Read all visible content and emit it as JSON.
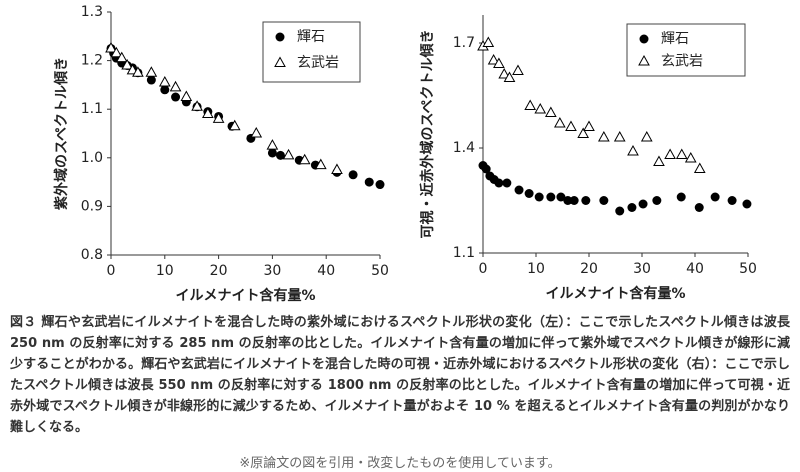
{
  "chart_data": [
    {
      "type": "scatter",
      "x_label": "イルメナイト含有量%",
      "y_label": "紫外域のスペクトル傾き",
      "xlim": [
        0,
        50
      ],
      "xticks": [
        0,
        10,
        20,
        30,
        40,
        50
      ],
      "ylim": [
        0.8,
        1.3
      ],
      "yticks": [
        0.8,
        0.9,
        {
          "value": 1,
          "label": "1.0"
        },
        1.1,
        1.2,
        1.3
      ],
      "legend": "upper right",
      "series": [
        {
          "name": "輝石",
          "color": "#000000",
          "marker": "circle",
          "x": [
            0,
            0.5,
            1,
            2,
            3,
            4,
            5,
            7.5,
            10,
            12,
            14,
            16,
            18,
            20,
            22.5,
            26,
            30,
            31.5,
            35,
            38,
            42,
            45,
            48,
            50
          ],
          "values": [
            1.225,
            1.215,
            1.205,
            1.195,
            1.19,
            1.185,
            1.175,
            1.16,
            1.14,
            1.125,
            1.115,
            1.105,
            1.095,
            1.085,
            1.065,
            1.04,
            1.01,
            1.005,
            0.995,
            0.985,
            0.97,
            0.965,
            0.95,
            0.945
          ]
        },
        {
          "name": "玄武岩",
          "color": "#000000",
          "marker": "triangle-open",
          "x": [
            0,
            1,
            2,
            3,
            4,
            5,
            7.5,
            10,
            12,
            14,
            16,
            18,
            20,
            23,
            27,
            30,
            33,
            36,
            39,
            42
          ],
          "values": [
            1.225,
            1.215,
            1.205,
            1.19,
            1.18,
            1.175,
            1.175,
            1.155,
            1.145,
            1.125,
            1.105,
            1.09,
            1.08,
            1.065,
            1.05,
            1.025,
            1.005,
            0.995,
            0.985,
            0.975
          ]
        }
      ]
    },
    {
      "type": "scatter",
      "x_label": "イルメナイト含有量%",
      "y_label": "可視・近赤外域のスペクトル傾き",
      "xlim": [
        0,
        50
      ],
      "xticks": [
        0,
        10,
        20,
        30,
        40,
        50
      ],
      "ylim": [
        1.1,
        1.78
      ],
      "yticks": [
        1.1,
        1.4,
        1.7
      ],
      "legend": "upper right",
      "series": [
        {
          "name": "輝石",
          "color": "#000000",
          "marker": "circle",
          "x": [
            0,
            0.6,
            1.3,
            2.1,
            3,
            4.5,
            6.8,
            8.7,
            10.6,
            12.8,
            14.7,
            16,
            17.2,
            19.4,
            22.8,
            25.8,
            28.1,
            30.2,
            32.8,
            37.4,
            40.8,
            43.8,
            47,
            49.8
          ],
          "values": [
            1.35,
            1.34,
            1.32,
            1.31,
            1.3,
            1.3,
            1.28,
            1.27,
            1.26,
            1.26,
            1.26,
            1.25,
            1.25,
            1.25,
            1.25,
            1.22,
            1.23,
            1.24,
            1.25,
            1.26,
            1.23,
            1.26,
            1.25,
            1.24
          ]
        },
        {
          "name": "玄武岩",
          "color": "#000000",
          "marker": "triangle-open",
          "x": [
            0,
            1,
            2,
            3,
            4,
            5,
            6.6,
            8.9,
            10.8,
            12.8,
            14.5,
            16.6,
            18.9,
            20,
            22.8,
            25.8,
            28.3,
            30.9,
            33.2,
            35.3,
            37.5,
            39.2,
            40.9
          ],
          "values": [
            1.69,
            1.7,
            1.65,
            1.64,
            1.61,
            1.6,
            1.62,
            1.52,
            1.51,
            1.5,
            1.47,
            1.46,
            1.44,
            1.46,
            1.43,
            1.43,
            1.39,
            1.43,
            1.36,
            1.38,
            1.38,
            1.37,
            1.34
          ]
        }
      ]
    }
  ],
  "caption": "図３ 輝石や玄武岩にイルメナイトを混合した時の紫外域におけるスペクトル形状の変化（左）：ここで示したスペクトル傾きは波長 250 nm の反射率に対する 285 nm の反射率の比とした。イルメナイト含有量の増加に伴って紫外域でスペクトル傾きが線形に減少することがわかる。輝石や玄武岩にイルメナイトを混合した時の可視・近赤外域におけるスペクトル形状の変化（右）：ここで示したスペクトル傾きは波長 550 nm の反射率に対する 1800 nm の反射率の比とした。イルメナイト含有量の増加に伴って可視・近赤外域でスペクトル傾きが非線形的に減少するため、イルメナイト量がおよそ 10 % を超えるとイルメナイト含有量の判別がかなり難しくなる。",
  "note": "※原論文の図を引用・改変したものを使用しています。"
}
